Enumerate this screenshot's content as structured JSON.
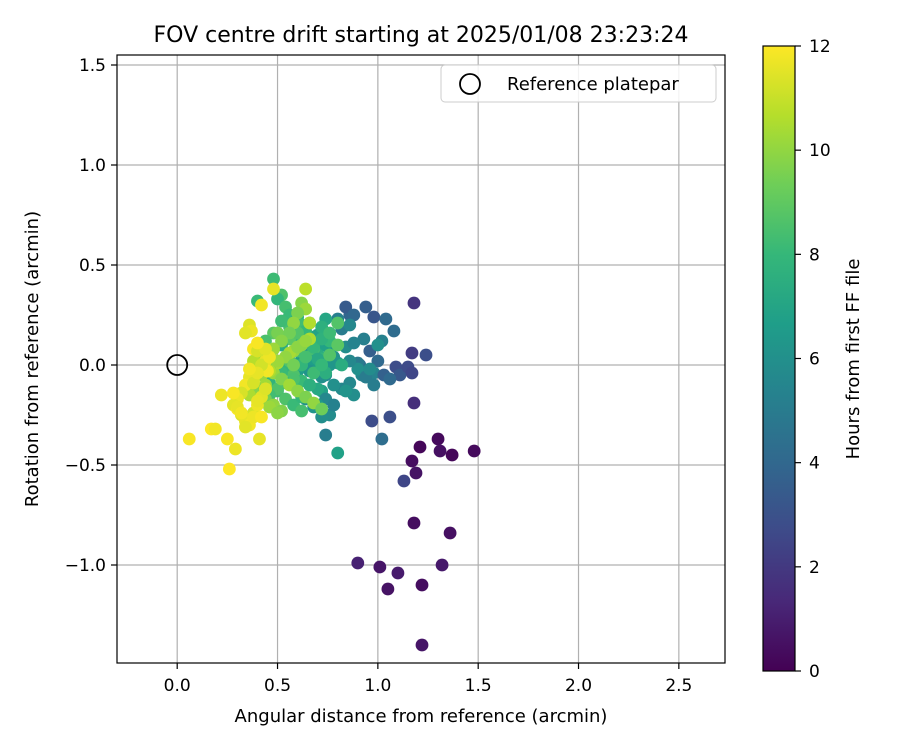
{
  "chart_data": {
    "type": "scatter",
    "title": "FOV centre drift starting at 2025/01/08 23:23:24",
    "xlabel": "Angular distance from reference (arcmin)",
    "ylabel": "Rotation from reference (arcmin)",
    "xlim": [
      -0.3,
      2.73
    ],
    "ylim": [
      -1.49,
      1.55
    ],
    "xticks": [
      0.0,
      0.5,
      1.0,
      1.5,
      2.0,
      2.5
    ],
    "xtick_labels": [
      "0.0",
      "0.5",
      "1.0",
      "1.5",
      "2.0",
      "2.5"
    ],
    "yticks": [
      -1.0,
      -0.5,
      0.0,
      0.5,
      1.0,
      1.5
    ],
    "ytick_labels": [
      "−1.0",
      "−0.5",
      "0.0",
      "0.5",
      "1.0",
      "1.5"
    ],
    "grid": true,
    "legend": {
      "placement": "top-right",
      "entries": [
        "Reference platepar"
      ]
    },
    "reference_point": {
      "x": 0.0,
      "y": 0.0,
      "label": "Reference platepar"
    },
    "colorbar": {
      "label": "Hours from first FF file",
      "min": 0,
      "max": 12,
      "ticks": [
        0,
        2,
        4,
        6,
        8,
        10,
        12
      ],
      "tick_labels": [
        "0",
        "2",
        "4",
        "6",
        "8",
        "10",
        "12"
      ],
      "colormap": [
        "#440154",
        "#482878",
        "#3e4a89",
        "#31688e",
        "#26828e",
        "#1f9e89",
        "#35b779",
        "#6ece58",
        "#b5de2b",
        "#fde725"
      ]
    },
    "series": [
      {
        "x": [
          1.21,
          1.3,
          1.37,
          1.48,
          1.19,
          1.17,
          1.31,
          1.18,
          1.13,
          1.18,
          1.36,
          0.9,
          1.01,
          1.05,
          1.1,
          1.22,
          1.32,
          1.22
        ],
        "y": [
          -0.41,
          -0.37,
          -0.45,
          -0.43,
          -0.54,
          -0.48,
          -0.43,
          -0.79,
          -0.58,
          -0.19,
          -0.84,
          -0.99,
          -1.01,
          -1.12,
          -1.04,
          -1.1,
          -1.0,
          -1.4
        ],
        "t": [
          0.2,
          0.3,
          0.2,
          0.3,
          0.6,
          0.4,
          0.5,
          0.4,
          2.5,
          1.6,
          0.5,
          1.1,
          0.7,
          0.6,
          0.9,
          0.4,
          0.8,
          0.7
        ]
      },
      {
        "x": [
          1.18,
          1.17,
          1.24,
          1.09,
          1.11,
          1.15,
          1.17,
          1.08,
          0.94,
          0.98,
          1.04,
          1.02,
          0.86,
          0.93,
          0.96,
          1.0,
          1.06,
          0.84,
          0.88,
          0.92,
          0.98,
          1.03,
          0.91,
          0.97,
          1.06
        ],
        "y": [
          0.31,
          0.06,
          0.05,
          -0.01,
          -0.05,
          -0.01,
          -0.04,
          0.17,
          0.29,
          0.24,
          0.23,
          0.12,
          0.25,
          0.13,
          0.07,
          0.02,
          -0.26,
          0.29,
          0.25,
          -0.02,
          -0.04,
          -0.05,
          0.0,
          -0.28,
          -0.07
        ],
        "t": [
          1.8,
          2.1,
          2.9,
          2.8,
          3.3,
          2.7,
          2.5,
          4.2,
          3.6,
          3.2,
          4.1,
          5.3,
          3.9,
          5.2,
          3.6,
          4.1,
          2.9,
          3.4,
          4.0,
          4.6,
          5.4,
          3.7,
          4.3,
          2.8,
          4.1
        ]
      },
      {
        "x": [
          0.82,
          0.84,
          0.8,
          0.86,
          0.88,
          0.9,
          0.92,
          0.78,
          0.74,
          0.76,
          0.72,
          0.7,
          0.68,
          0.66,
          0.72,
          0.74,
          0.7,
          0.76,
          0.72,
          0.68,
          0.64,
          0.78,
          0.82,
          0.74,
          0.8,
          0.84,
          0.86,
          0.76,
          0.7,
          0.74,
          0.68,
          0.7,
          0.72,
          1.02,
          0.94,
          0.9,
          0.86,
          0.94,
          0.96,
          0.98,
          1.0,
          0.8,
          0.78,
          0.88,
          0.84,
          0.74,
          0.66,
          0.62,
          0.6,
          0.58
        ],
        "y": [
          0.18,
          0.09,
          0.23,
          0.2,
          0.11,
          0.01,
          -0.05,
          0.04,
          -0.05,
          0.0,
          -0.06,
          -0.01,
          0.0,
          -0.03,
          -0.13,
          -0.17,
          -0.2,
          -0.25,
          -0.26,
          -0.21,
          -0.17,
          -0.2,
          -0.12,
          -0.35,
          -0.44,
          -0.12,
          -0.09,
          0.08,
          0.15,
          0.23,
          0.14,
          0.06,
          0.01,
          -0.37,
          -0.06,
          -0.02,
          0.02,
          -0.06,
          -0.02,
          -0.1,
          0.1,
          0.01,
          -0.1,
          -0.15,
          -0.13,
          0.1,
          0.06,
          0.03,
          -0.03,
          -0.07
        ],
        "t": [
          5.0,
          5.8,
          5.2,
          5.6,
          5.4,
          4.9,
          5.5,
          6.1,
          5.7,
          6.3,
          6.0,
          5.5,
          6.6,
          6.2,
          6.8,
          5.6,
          6.4,
          5.8,
          5.9,
          6.2,
          6.0,
          5.3,
          5.7,
          5.1,
          6.8,
          5.4,
          5.6,
          6.4,
          6.7,
          7.1,
          6.9,
          7.4,
          6.6,
          4.3,
          6.4,
          6.0,
          5.6,
          5.0,
          5.8,
          5.1,
          6.0,
          6.3,
          6.0,
          5.9,
          6.2,
          6.8,
          6.3,
          6.5,
          6.6,
          6.9
        ]
      },
      {
        "x": [
          0.48,
          0.52,
          0.5,
          0.54,
          0.56,
          0.58,
          0.6,
          0.62,
          0.64,
          0.66,
          0.6,
          0.56,
          0.52,
          0.48,
          0.46,
          0.44,
          0.5,
          0.54,
          0.58,
          0.62,
          0.66,
          0.7,
          0.74,
          0.72,
          0.68,
          0.64,
          0.6,
          0.56,
          0.52,
          0.48,
          0.44,
          0.4,
          0.46,
          0.5,
          0.54,
          0.58,
          0.62,
          0.66,
          0.7,
          0.8,
          0.82,
          0.76,
          0.72,
          0.6,
          0.56,
          0.52,
          0.62,
          0.64,
          0.68,
          0.72,
          0.76,
          0.8,
          0.58,
          0.54,
          0.5,
          0.46,
          0.62,
          0.68,
          0.72,
          0.76
        ],
        "y": [
          0.43,
          0.35,
          0.33,
          0.29,
          0.25,
          0.21,
          0.24,
          0.2,
          0.17,
          0.21,
          0.12,
          0.13,
          0.1,
          0.08,
          0.05,
          0.02,
          0.0,
          -0.02,
          -0.05,
          -0.08,
          -0.1,
          -0.12,
          -0.04,
          0.03,
          0.08,
          0.12,
          0.16,
          0.19,
          0.22,
          0.16,
          0.12,
          0.32,
          -0.09,
          -0.13,
          -0.17,
          -0.2,
          -0.23,
          -0.1,
          0.03,
          0.21,
          0.0,
          0.12,
          0.19,
          0.07,
          0.02,
          -0.04,
          0.0,
          0.04,
          0.09,
          0.13,
          0.16,
          0.1,
          -0.07,
          -0.09,
          -0.12,
          -0.15,
          -0.16,
          -0.04,
          0.0,
          0.05
        ],
        "t": [
          8.2,
          8.6,
          7.9,
          8.4,
          8.1,
          8.8,
          7.6,
          8.3,
          8.0,
          8.5,
          7.8,
          8.9,
          7.4,
          8.7,
          8.2,
          8.0,
          8.4,
          7.9,
          8.6,
          8.1,
          7.7,
          7.2,
          7.5,
          7.9,
          8.3,
          8.0,
          8.7,
          8.4,
          8.2,
          8.9,
          8.5,
          8.1,
          7.8,
          8.2,
          8.6,
          8.1,
          8.4,
          7.6,
          7.2,
          8.7,
          7.4,
          8.0,
          7.6,
          8.3,
          8.7,
          8.1,
          7.9,
          8.4,
          8.0,
          7.7,
          8.2,
          8.9,
          8.5,
          8.1,
          8.6,
          8.3,
          7.9,
          8.2,
          8.0,
          8.7
        ]
      },
      {
        "x": [
          0.5,
          0.64,
          0.66,
          0.62,
          0.64,
          0.6,
          0.58,
          0.56,
          0.52,
          0.48,
          0.44,
          0.42,
          0.4,
          0.38,
          0.44,
          0.48,
          0.52,
          0.56,
          0.6,
          0.64,
          0.68,
          0.72,
          0.66,
          0.62,
          0.58,
          0.54,
          0.5,
          0.46,
          0.42,
          0.38,
          0.36,
          0.4,
          0.44,
          0.48,
          0.52,
          0.56,
          0.6,
          0.64,
          0.44,
          0.4,
          0.36,
          0.42,
          0.46,
          0.5,
          0.54,
          0.58,
          0.5,
          0.46
        ],
        "y": [
          0.16,
          0.38,
          0.21,
          0.31,
          0.28,
          0.26,
          0.21,
          0.16,
          0.12,
          0.08,
          0.05,
          0.03,
          0.0,
          0.02,
          -0.01,
          -0.04,
          -0.07,
          -0.1,
          -0.13,
          -0.16,
          -0.19,
          -0.22,
          0.13,
          0.1,
          0.07,
          0.04,
          0.01,
          -0.02,
          -0.05,
          -0.08,
          -0.11,
          -0.14,
          -0.17,
          -0.2,
          -0.23,
          0.06,
          0.09,
          0.12,
          -0.1,
          -0.12,
          -0.15,
          -0.18,
          -0.21,
          -0.24,
          0.04,
          0.0,
          0.02,
          -0.03
        ],
        "t": [
          9.5,
          10.8,
          10.6,
          9.8,
          10.2,
          9.6,
          10.0,
          9.4,
          9.8,
          10.2,
          9.6,
          10.4,
          9.9,
          10.7,
          9.5,
          10.1,
          9.7,
          10.3,
          9.9,
          9.6,
          10.0,
          9.3,
          10.5,
          9.8,
          10.1,
          9.7,
          10.4,
          9.9,
          10.2,
          10.6,
          9.8,
          10.3,
          9.5,
          10.0,
          9.7,
          10.4,
          9.9,
          10.1,
          10.3,
          9.8,
          10.5,
          9.6,
          10.2,
          9.9,
          10.0,
          9.4,
          10.2,
          10.6
        ]
      },
      {
        "x": [
          0.42,
          0.48,
          0.36,
          0.37,
          0.34,
          0.38,
          0.4,
          0.44,
          0.45,
          0.42,
          0.46,
          0.44,
          0.4,
          0.38,
          0.36,
          0.34,
          0.32,
          0.3,
          0.28,
          0.3,
          0.32,
          0.34,
          0.36,
          0.38,
          0.4,
          0.42,
          0.44,
          0.38,
          0.4,
          0.36,
          0.22,
          0.28,
          0.3,
          0.32,
          0.34,
          0.38,
          0.42,
          0.41,
          0.17,
          0.19,
          0.25,
          0.29,
          0.26,
          0.06,
          0.44,
          0.4
        ],
        "y": [
          0.3,
          0.38,
          0.2,
          0.17,
          0.16,
          0.08,
          0.07,
          0.02,
          -0.03,
          0.0,
          0.04,
          0.08,
          0.11,
          -0.08,
          -0.06,
          -0.1,
          -0.14,
          -0.17,
          -0.2,
          -0.22,
          -0.25,
          -0.28,
          -0.3,
          -0.24,
          -0.2,
          -0.16,
          -0.12,
          -0.09,
          -0.04,
          -0.02,
          -0.15,
          -0.14,
          -0.21,
          -0.24,
          -0.31,
          -0.26,
          -0.26,
          -0.37,
          -0.32,
          -0.32,
          -0.37,
          -0.42,
          -0.52,
          -0.37,
          -0.12,
          -0.18
        ],
        "t": [
          11.8,
          11.6,
          11.4,
          11.7,
          11.5,
          11.9,
          11.3,
          11.6,
          11.8,
          11.2,
          11.7,
          11.5,
          11.9,
          11.4,
          11.6,
          11.8,
          11.3,
          11.7,
          11.5,
          11.9,
          11.4,
          11.6,
          11.8,
          11.2,
          11.7,
          11.5,
          11.9,
          11.3,
          11.6,
          11.8,
          11.7,
          11.9,
          11.6,
          11.8,
          11.5,
          11.7,
          11.9,
          11.6,
          12.0,
          11.8,
          11.9,
          11.7,
          12.0,
          11.9,
          11.4,
          11.6
        ]
      }
    ]
  }
}
